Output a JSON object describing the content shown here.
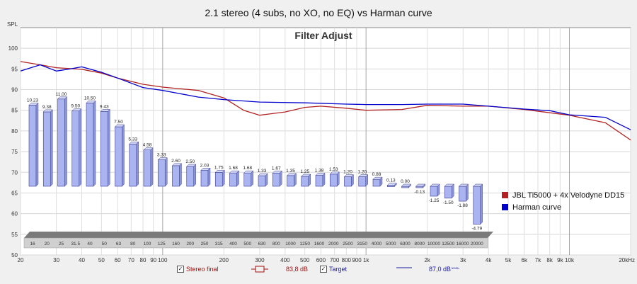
{
  "title": "2.1 stereo (4 subs, no XO, no EQ) vs Harman curve",
  "chart_data": {
    "type": "line",
    "panel_title": "Filter Adjust",
    "ylabel": "SPL",
    "xlabel": "",
    "x_scale": "log",
    "xlim": [
      20,
      20000
    ],
    "ylim": [
      50,
      105
    ],
    "y_ticks": [
      50,
      55,
      60,
      65,
      70,
      75,
      80,
      85,
      90,
      95,
      100
    ],
    "x_ticks": [
      {
        "v": 20,
        "label": "20"
      },
      {
        "v": 30,
        "label": "30"
      },
      {
        "v": 40,
        "label": "40"
      },
      {
        "v": 50,
        "label": "50"
      },
      {
        "v": 60,
        "label": "60"
      },
      {
        "v": 70,
        "label": "70"
      },
      {
        "v": 80,
        "label": "80"
      },
      {
        "v": 90,
        "label": "90"
      },
      {
        "v": 100,
        "label": "100"
      },
      {
        "v": 200,
        "label": "200"
      },
      {
        "v": 300,
        "label": "300"
      },
      {
        "v": 400,
        "label": "400"
      },
      {
        "v": 500,
        "label": "500"
      },
      {
        "v": 600,
        "label": "600"
      },
      {
        "v": 700,
        "label": "700"
      },
      {
        "v": 800,
        "label": "800"
      },
      {
        "v": 900,
        "label": "900"
      },
      {
        "v": 1000,
        "label": "1k"
      },
      {
        "v": 2000,
        "label": "2k"
      },
      {
        "v": 3000,
        "label": "3k"
      },
      {
        "v": 4000,
        "label": "4k"
      },
      {
        "v": 5000,
        "label": "5k"
      },
      {
        "v": 6000,
        "label": "6k"
      },
      {
        "v": 7000,
        "label": "7k"
      },
      {
        "v": 8000,
        "label": "8k"
      },
      {
        "v": 9000,
        "label": "9k"
      },
      {
        "v": 10000,
        "label": "10k"
      },
      {
        "v": 20000,
        "label": "20kHz"
      }
    ],
    "grid": true,
    "legend_position": "right",
    "series": [
      {
        "name": "JBL Ti5000 + 4x Velodyne DD15",
        "color": "#b22222",
        "x": [
          20,
          25,
          30,
          40,
          50,
          60,
          80,
          100,
          150,
          200,
          250,
          300,
          400,
          500,
          600,
          800,
          1000,
          1500,
          2000,
          3000,
          4000,
          6000,
          10000,
          15000,
          20000
        ],
        "y": [
          96.8,
          96.0,
          95.3,
          94.9,
          94.0,
          92.8,
          91.3,
          90.6,
          89.8,
          88.0,
          85.0,
          83.8,
          84.6,
          85.7,
          86.0,
          85.5,
          85.0,
          85.2,
          86.2,
          86.0,
          86.0,
          85.2,
          83.8,
          82.0,
          77.8
        ]
      },
      {
        "name": "Harman curve",
        "color": "#0000cc",
        "x": [
          20,
          25,
          30,
          35,
          40,
          50,
          60,
          80,
          100,
          150,
          200,
          300,
          500,
          800,
          1000,
          1500,
          2000,
          3000,
          4000,
          6000,
          8000,
          10000,
          15000,
          20000
        ],
        "y": [
          94.5,
          96.0,
          94.5,
          95.0,
          95.5,
          94.2,
          92.8,
          90.5,
          89.8,
          88.2,
          87.6,
          87.0,
          86.8,
          86.5,
          86.4,
          86.4,
          86.5,
          86.5,
          86.0,
          85.3,
          84.9,
          83.9,
          83.3,
          80.3
        ]
      }
    ],
    "filter_bands": {
      "frequencies": [
        "16",
        "20",
        "25",
        "31.5",
        "40",
        "50",
        "63",
        "80",
        "100",
        "125",
        "160",
        "200",
        "250",
        "315",
        "400",
        "500",
        "630",
        "800",
        "1000",
        "1250",
        "1600",
        "2000",
        "2500",
        "3150",
        "4000",
        "5000",
        "6300",
        "8000",
        "10000",
        "12500",
        "16000",
        "20000"
      ],
      "gains": [
        10.23,
        9.38,
        11.0,
        9.5,
        10.5,
        9.43,
        7.5,
        5.33,
        4.58,
        3.33,
        2.6,
        2.5,
        2.03,
        1.75,
        1.68,
        1.68,
        1.33,
        1.67,
        1.35,
        1.25,
        1.38,
        1.53,
        1.2,
        1.2,
        0.88,
        0.13,
        0.0,
        -0.13,
        -1.25,
        -1.5,
        -1.88,
        -4.79
      ],
      "gain_labels": [
        "10.23",
        "9.38",
        "11.00",
        "9.50",
        "10.50",
        "9.43",
        "7.50",
        "5.33",
        "4.58",
        "3.33",
        "2.60",
        "2.50",
        "2.03",
        "1.75",
        "1.68",
        "1.68",
        "1.33",
        "1.67",
        "1.35",
        "1.25",
        "1.38",
        "1.53",
        "1.20",
        "1.20",
        "0.88",
        "0.13",
        "0.00",
        "-0.13",
        "-1.25",
        "-1.50",
        "-1.88",
        "-4.79"
      ],
      "bar_color": "#aab4f0"
    }
  },
  "legend": {
    "items": [
      {
        "label": "JBL Ti5000 + 4x Velodyne DD15",
        "color": "#b22222"
      },
      {
        "label": "Harman curve",
        "color": "#0000cc"
      }
    ]
  },
  "footer": {
    "stereo_final_label": "Stereo final",
    "stereo_final_value": "83,8 dB",
    "target_label": "Target",
    "target_value": "87,0 dB",
    "target_unit_small": "ᴺᴼᵁᴿˢ"
  }
}
